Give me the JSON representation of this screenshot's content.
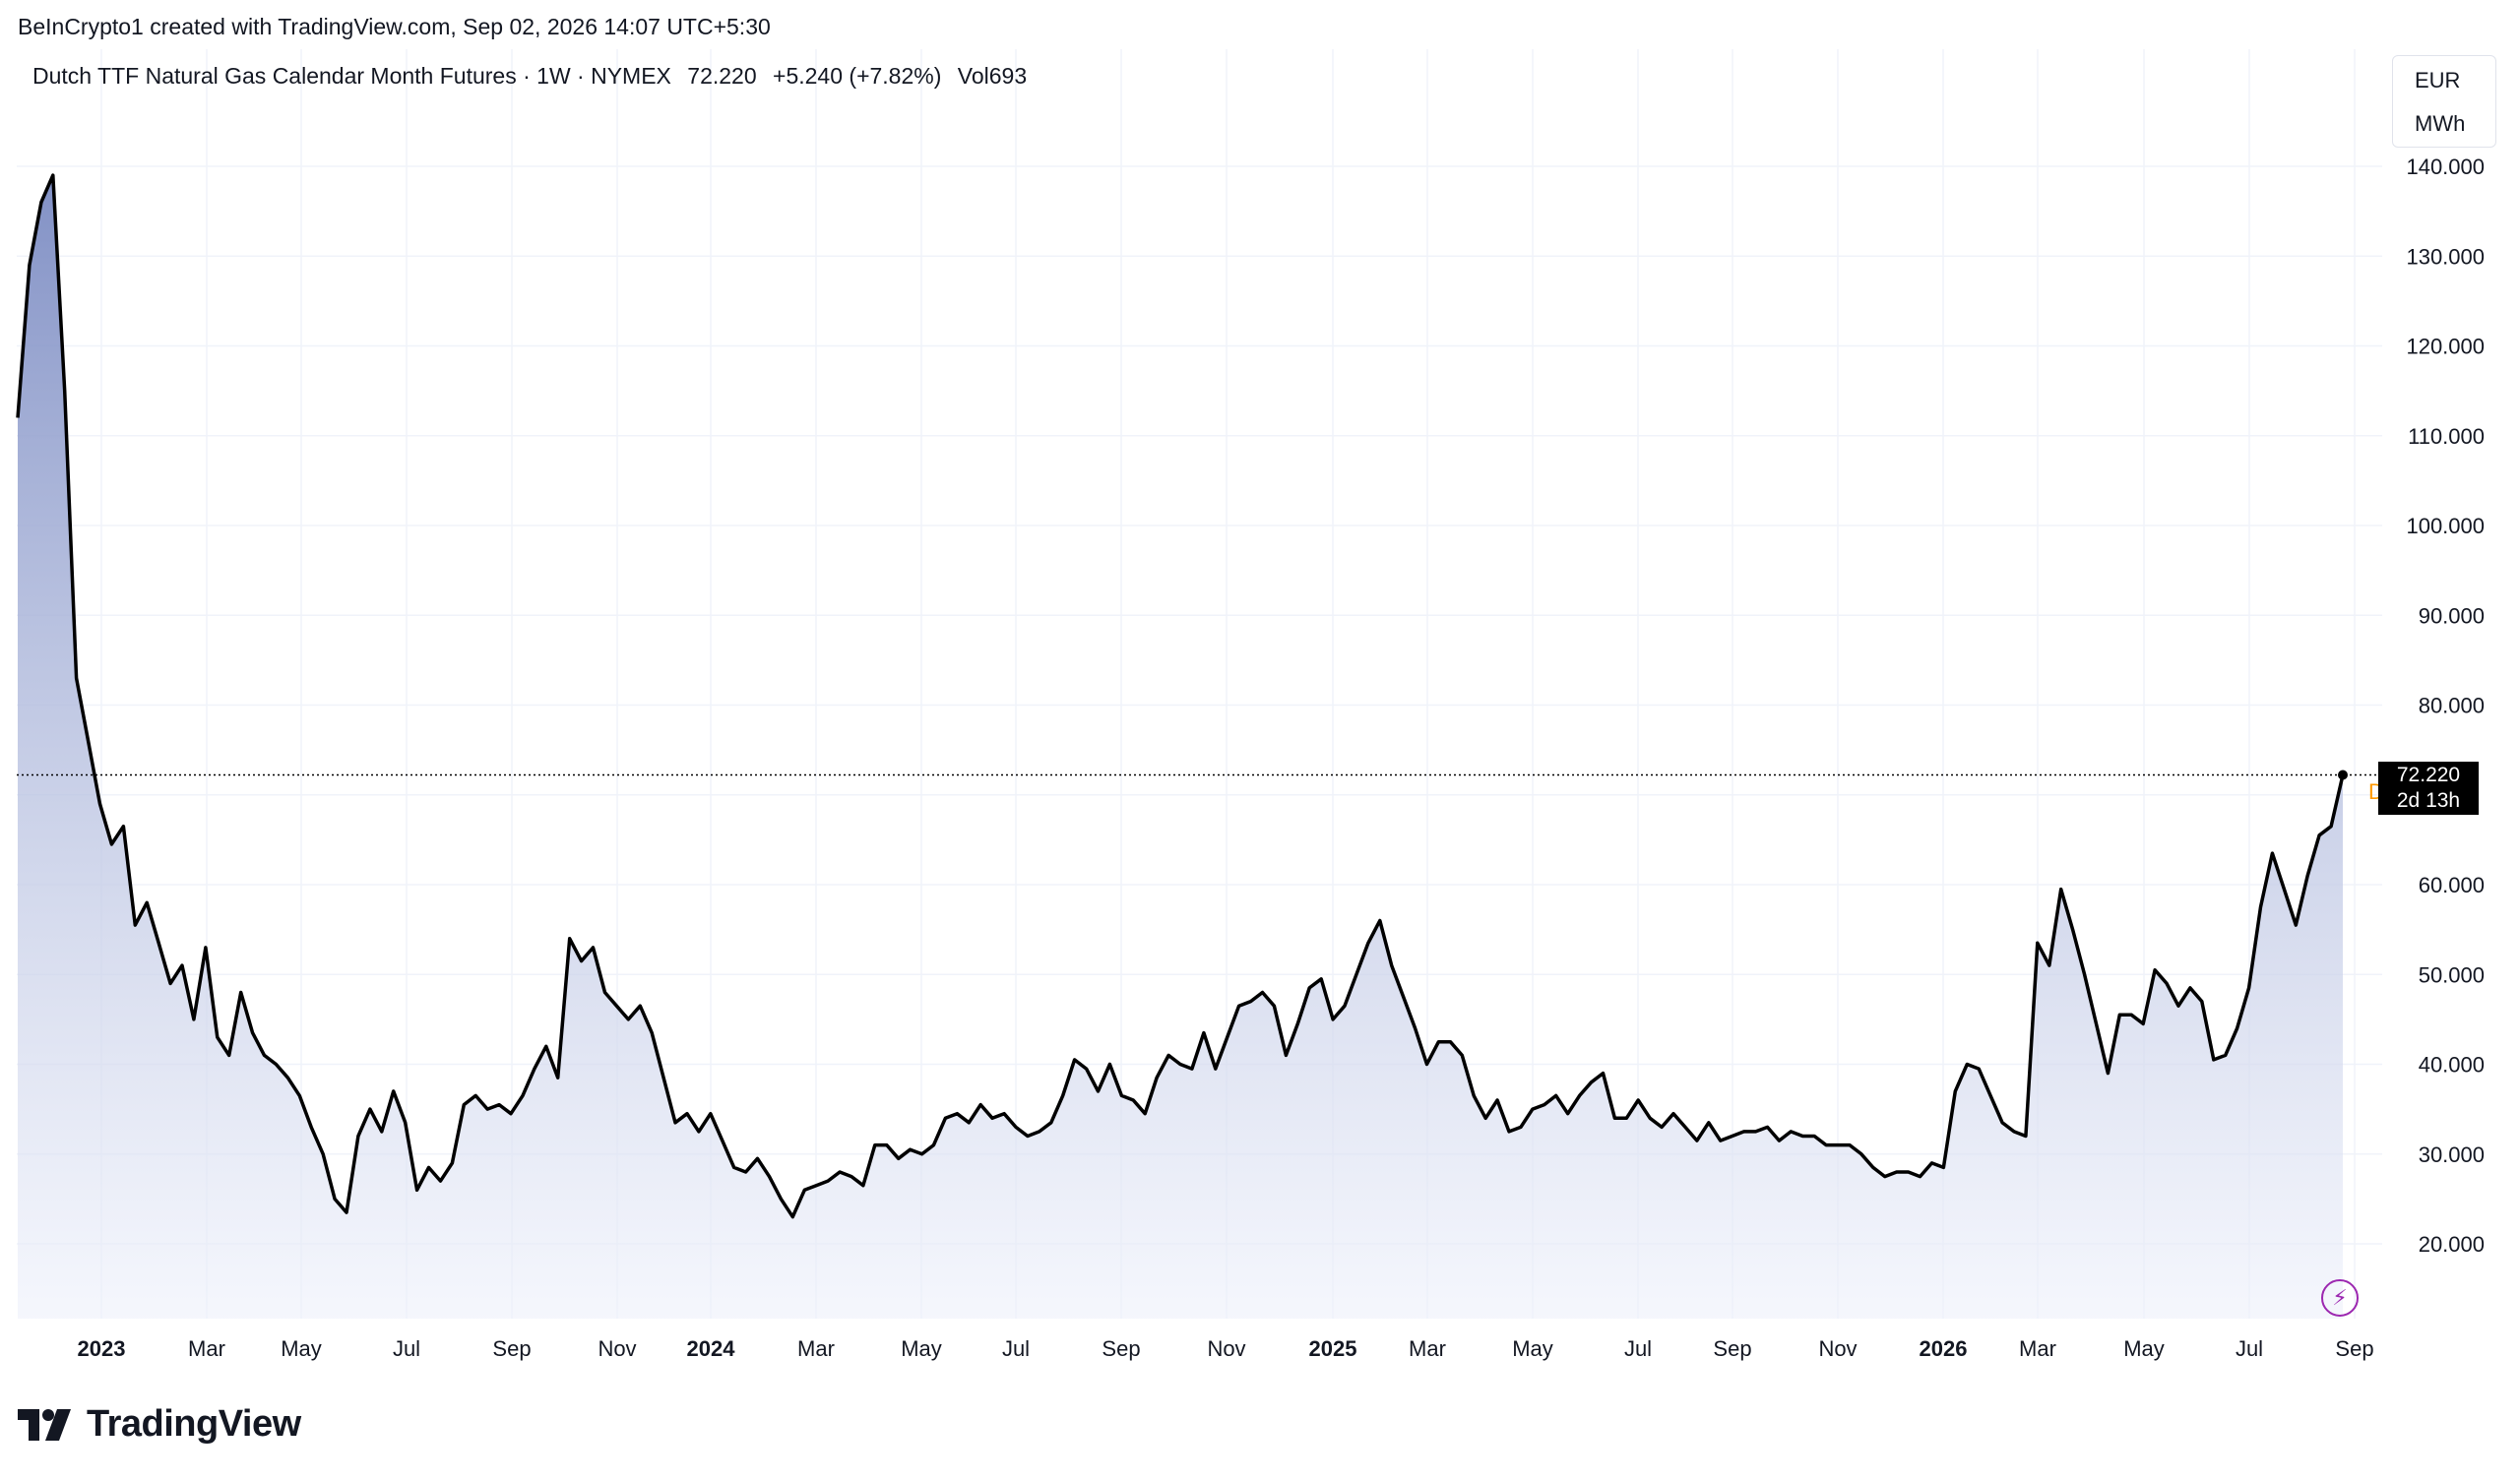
{
  "header": {
    "credit": "BeInCrypto1 created with TradingView.com, Sep 02, 2026 14:07 UTC+5:30"
  },
  "legend": {
    "symbol": "Dutch TTF Natural Gas Calendar Month Futures · 1W · NYMEX",
    "price": "72.220",
    "change": "+5.240 (+7.82%)",
    "volume": "Vol693"
  },
  "units": {
    "currency": "EUR",
    "unit": "MWh"
  },
  "last_price": {
    "value": "72.220",
    "countdown": "2d 13h"
  },
  "marker_letter": "D",
  "bolt_icon": "⚡",
  "brand": {
    "name": "TradingView"
  },
  "colors": {
    "line": "#000000",
    "fill_top": "#7b8bc2",
    "fill_bottom": "#eef1fb",
    "grid": "#f0f3fa"
  },
  "chart_data": {
    "type": "area",
    "title": "",
    "xlabel": "",
    "ylabel": "",
    "ylim": [
      10,
      145
    ],
    "y_ticks": [
      20,
      30,
      40,
      50,
      60,
      70,
      80,
      90,
      100,
      110,
      120,
      130,
      140
    ],
    "y_tick_labels": [
      "20.000",
      "30.000",
      "40.000",
      "50.000",
      "60.000",
      "",
      "80.000",
      "90.000",
      "100.000",
      "110.000",
      "120.000",
      "130.000",
      "140.000"
    ],
    "x_tick_labels": [
      "2023",
      "Mar",
      "May",
      "Jul",
      "Sep",
      "Nov",
      "2024",
      "Mar",
      "May",
      "Jul",
      "Sep",
      "Nov",
      "2025",
      "Mar",
      "May",
      "Jul",
      "Sep",
      "Nov",
      "2026",
      "Mar",
      "May",
      "Jul",
      "Sep"
    ],
    "x_major_labels": [
      "2023",
      "2024",
      "2025",
      "2026"
    ],
    "grid": true,
    "series": [
      {
        "values": [
          112,
          129,
          136,
          139,
          115,
          83,
          76,
          69,
          64.5,
          66.5,
          55.5,
          58,
          53.5,
          49,
          51,
          45,
          53,
          43,
          41,
          48,
          43.5,
          41,
          40,
          38.5,
          36.5,
          33,
          30,
          25,
          23.5,
          32,
          35,
          32.5,
          37,
          33.5,
          26,
          28.5,
          27,
          29,
          35.5,
          36.5,
          35,
          35.5,
          34.5,
          36.5,
          39.5,
          42,
          38.5,
          54,
          51.5,
          53,
          48,
          46.5,
          45,
          46.5,
          43.5,
          38.5,
          33.5,
          34.5,
          32.5,
          34.5,
          31.5,
          28.5,
          28,
          29.5,
          27.5,
          25,
          23,
          26,
          26.5,
          27,
          28,
          27.5,
          26.5,
          31,
          31,
          29.5,
          30.5,
          30,
          31,
          34,
          34.5,
          33.5,
          35.5,
          34,
          34.5,
          33,
          32,
          32.5,
          33.5,
          36.5,
          40.5,
          39.5,
          37,
          40,
          36.5,
          36,
          34.5,
          38.5,
          41,
          40,
          39.5,
          43.5,
          39.5,
          43,
          46.5,
          47,
          48,
          46.5,
          41,
          44.5,
          48.5,
          49.5,
          45,
          46.5,
          50,
          53.5,
          56,
          51,
          47.5,
          44,
          40,
          42.5,
          42.5,
          41,
          36.5,
          34,
          36,
          32.5,
          33,
          35,
          35.5,
          36.5,
          34.5,
          36.5,
          38,
          39,
          34,
          34,
          36,
          34,
          33,
          34.5,
          33,
          31.5,
          33.5,
          31.5,
          32,
          32.5,
          32.5,
          33,
          31.5,
          32.5,
          32,
          32,
          31,
          31,
          31,
          30,
          28.5,
          27.5,
          28,
          28,
          27.5,
          29,
          28.5,
          37,
          40,
          39.5,
          36.5,
          33.5,
          32.5,
          32,
          53.5,
          51,
          59.5,
          55,
          50,
          44.5,
          39,
          45.5,
          45.5,
          44.5,
          50.5,
          49,
          46.5,
          48.5,
          47,
          40.5,
          41,
          44,
          48.5,
          57.5,
          63.5,
          59.5,
          55.5,
          61,
          65.5,
          66.5,
          72.22
        ]
      }
    ]
  }
}
